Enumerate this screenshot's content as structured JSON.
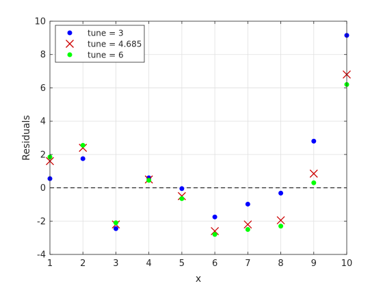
{
  "chart_data": {
    "type": "scatter",
    "xlabel": "x",
    "ylabel": "Residuals",
    "xlim": [
      1,
      10
    ],
    "ylim": [
      -4,
      10
    ],
    "xticks": [
      1,
      2,
      3,
      4,
      5,
      6,
      7,
      8,
      9,
      10
    ],
    "yticks": [
      -4,
      -2,
      0,
      2,
      4,
      6,
      8,
      10
    ],
    "grid": true,
    "legend": "top-left",
    "reference_line": {
      "y": 0,
      "style": "dashed",
      "color": "#000000"
    },
    "x": [
      1,
      2,
      3,
      4,
      5,
      6,
      7,
      8,
      9,
      10
    ],
    "series": [
      {
        "name": "tune = 3",
        "marker": "dot",
        "color": "#0000ff",
        "values": [
          0.55,
          1.75,
          -2.45,
          0.6,
          -0.05,
          -1.75,
          -0.98,
          -0.32,
          2.8,
          9.15
        ]
      },
      {
        "name": "tune = 4.685",
        "marker": "x",
        "color": "#cc0000",
        "values": [
          1.6,
          2.4,
          -2.2,
          0.5,
          -0.5,
          -2.6,
          -2.2,
          -1.95,
          0.85,
          6.8
        ]
      },
      {
        "name": "tune = 6",
        "marker": "dot",
        "color": "#00ff00",
        "values": [
          1.85,
          2.55,
          -2.1,
          0.45,
          -0.65,
          -2.8,
          -2.5,
          -2.3,
          0.3,
          6.2
        ]
      }
    ]
  }
}
